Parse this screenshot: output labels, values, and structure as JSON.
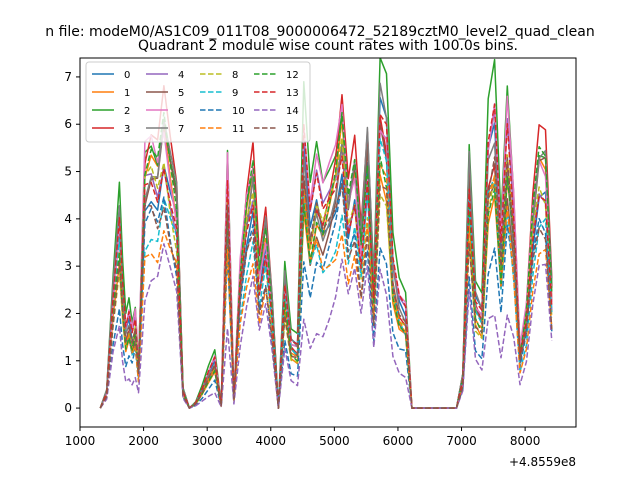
{
  "chart_data": {
    "type": "line",
    "suptitle": "n file: modeM0/AS1C09_011T08_9000006472_52189cztM0_level2_quad_clean",
    "title": "Quadrant 2 module wise count rates with 100.0s bins.",
    "xlabel": "",
    "ylabel": "",
    "x_offset_label": "+4.8559e8",
    "xlim": [
      1000,
      8800
    ],
    "ylim": [
      -0.4,
      7.4
    ],
    "x_ticks": [
      1000,
      2000,
      3000,
      4000,
      5000,
      6000,
      7000,
      8000
    ],
    "y_ticks": [
      0,
      1,
      2,
      3,
      4,
      5,
      6,
      7
    ],
    "grid": false,
    "legend_position": "top-left",
    "x": [
      1320,
      1420,
      1520,
      1620,
      1670,
      1720,
      1770,
      1820,
      1870,
      1920,
      2020,
      2120,
      2220,
      2320,
      2420,
      2520,
      2620,
      2720,
      2820,
      2920,
      3020,
      3120,
      3220,
      3320,
      3420,
      3520,
      3620,
      3720,
      3820,
      3920,
      4020,
      4120,
      4220,
      4320,
      4420,
      4520,
      4620,
      4720,
      4820,
      4920,
      5020,
      5120,
      5220,
      5320,
      5420,
      5520,
      5620,
      5720,
      5820,
      5920,
      6020,
      6120,
      6220,
      6320,
      6420,
      6520,
      6620,
      6720,
      6820,
      6920,
      7020,
      7120,
      7220,
      7320,
      7420,
      7520,
      7620,
      7720,
      7820,
      7920,
      8020,
      8120,
      8220,
      8320,
      8420
    ],
    "base_profile": [
      0.0,
      0.32,
      2.2,
      3.6,
      2.3,
      1.45,
      1.7,
      1.35,
      1.65,
      0.75,
      4.6,
      4.9,
      4.65,
      5.5,
      4.65,
      3.95,
      0.35,
      0.0,
      0.1,
      0.35,
      0.65,
      0.9,
      0.05,
      4.25,
      0.2,
      2.6,
      3.85,
      4.6,
      2.6,
      3.45,
      2.0,
      0.0,
      2.4,
      1.25,
      1.15,
      5.0,
      3.5,
      4.25,
      3.75,
      4.15,
      4.6,
      5.55,
      3.95,
      4.65,
      3.15,
      4.9,
      2.25,
      5.7,
      5.25,
      2.7,
      2.0,
      1.8,
      0.0,
      0.0,
      0.0,
      0.0,
      0.0,
      0.0,
      0.0,
      0.0,
      0.6,
      4.45,
      2.05,
      1.8,
      4.75,
      5.35,
      2.95,
      5.2,
      3.6,
      1.05,
      1.85,
      3.75,
      4.85,
      4.75,
      2.25
    ],
    "series": [
      {
        "name": "0",
        "color": "#1f77b4",
        "dash": "solid",
        "scale": 1.03
      },
      {
        "name": "1",
        "color": "#ff7f0e",
        "dash": "solid",
        "scale": 0.96
      },
      {
        "name": "2",
        "color": "#2ca02c",
        "dash": "solid",
        "scale": 1.24
      },
      {
        "name": "3",
        "color": "#d62728",
        "dash": "solid",
        "scale": 1.1
      },
      {
        "name": "4",
        "color": "#9467bd",
        "dash": "solid",
        "scale": 1.05
      },
      {
        "name": "5",
        "color": "#8c564b",
        "dash": "solid",
        "scale": 0.99
      },
      {
        "name": "6",
        "color": "#e377c2",
        "dash": "solid",
        "scale": 1.13
      },
      {
        "name": "7",
        "color": "#7f7f7f",
        "dash": "solid",
        "scale": 1.08
      },
      {
        "name": "8",
        "color": "#bcbd22",
        "dash": "dashed",
        "scale": 0.93
      },
      {
        "name": "9",
        "color": "#17becf",
        "dash": "dashed",
        "scale": 0.86
      },
      {
        "name": "10",
        "color": "#1f77b4",
        "dash": "dashed",
        "scale": 0.72
      },
      {
        "name": "11",
        "color": "#ff7f0e",
        "dash": "dashed",
        "scale": 0.8
      },
      {
        "name": "12",
        "color": "#2ca02c",
        "dash": "dashed",
        "scale": 1.0
      },
      {
        "name": "13",
        "color": "#d62728",
        "dash": "dashed",
        "scale": 1.06
      },
      {
        "name": "14",
        "color": "#9467bd",
        "dash": "dashed",
        "scale": 0.5
      },
      {
        "name": "15",
        "color": "#8c564b",
        "dash": "dashed",
        "scale": 0.88
      }
    ]
  }
}
